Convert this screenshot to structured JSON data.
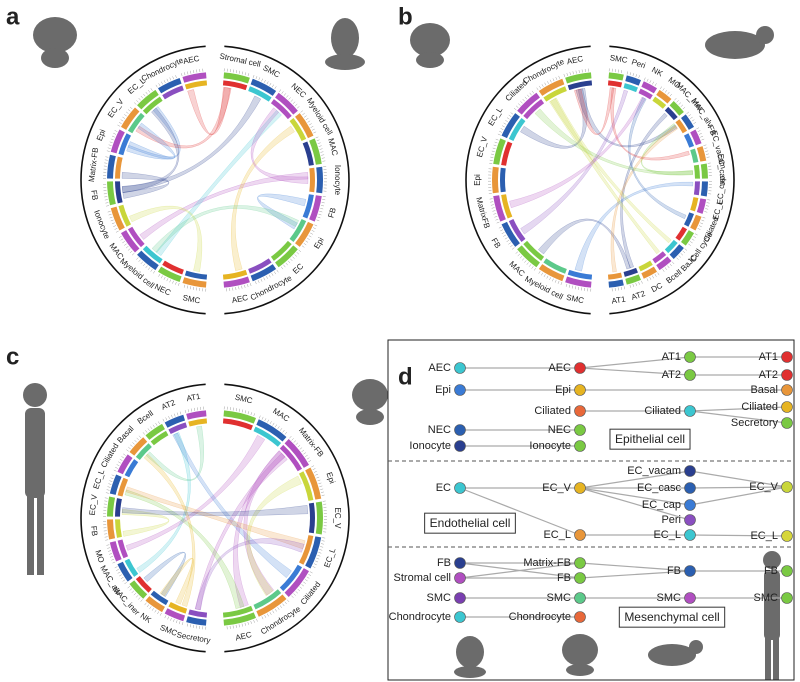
{
  "panels": {
    "a": {
      "label": "a",
      "right": [
        "Stromal cell",
        "SMC",
        "NEC",
        "Myeloid cell",
        "MAC",
        "Ionocyte",
        "FB",
        "Epi",
        "EC",
        "Chondrocyte",
        "AEC"
      ],
      "left": [
        "SMC",
        "NEC",
        "Myeloid cell",
        "MAC",
        "Ionocyte",
        "FB",
        "Matrix-FB",
        "Epi",
        "EC_V",
        "EC_L",
        "Chondrocyte",
        "AEC"
      ]
    },
    "b": {
      "label": "b",
      "right": [
        "SMC",
        "Peri",
        "NK",
        "MO",
        "MAC_iner",
        "MAC_alv",
        "FB",
        "EC_vacam",
        "EC_casc",
        "EC_cap",
        "EC_L",
        "Ciliated",
        "Cell cycle",
        "BaJC",
        "Bcell",
        "DC",
        "AT2",
        "AT1"
      ],
      "left": [
        "SMC",
        "Myeloid cell",
        "MAC",
        "FB",
        "MatrixFB",
        "Epi",
        "EC_V",
        "EC_L",
        "Ciliated",
        "Chondrocyte",
        "AEC"
      ]
    },
    "c": {
      "label": "c",
      "right": [
        "SMC",
        "MAC",
        "Matrix-FB",
        "Epi",
        "EC_V",
        "EC_L",
        "Ciliated",
        "Chondrocyte",
        "AEC"
      ],
      "left": [
        "Secretory",
        "SMC",
        "NK",
        "MAC_iner",
        "MAC_alv",
        "MO",
        "FB",
        "EC_V",
        "EC_L",
        "Ciliated",
        "Basal",
        "Bcell",
        "AT2",
        "AT1"
      ]
    },
    "d": {
      "label": "d",
      "groups": [
        {
          "name": "Epithelial cell",
          "columns": [
            [
              {
                "label": "AEC",
                "color": "#3cc6d0"
              },
              {
                "label": "Epi",
                "color": "#3a7bd5"
              },
              {
                "label": "NEC",
                "color": "#2b5fb0"
              },
              {
                "label": "Ionocyte",
                "color": "#2a3f8f"
              }
            ],
            [
              {
                "label": "AEC",
                "color": "#e03030"
              },
              {
                "label": "Epi",
                "color": "#e6b422"
              },
              {
                "label": "Ciliated",
                "color": "#e8683a"
              },
              {
                "label": "NEC",
                "color": "#7ac943"
              },
              {
                "label": "Ionocyte",
                "color": "#7ac943"
              }
            ],
            [
              {
                "label": "AT1",
                "color": "#7ac943"
              },
              {
                "label": "AT2",
                "color": "#7ac943"
              },
              {
                "label": "Ciliated",
                "color": "#3cc6d0"
              }
            ],
            [
              {
                "label": "AT1",
                "color": "#e03030"
              },
              {
                "label": "AT2",
                "color": "#e03030"
              },
              {
                "label": "Basal",
                "color": "#e8963a"
              },
              {
                "label": "Ciliated",
                "color": "#e6b422"
              },
              {
                "label": "Secretory",
                "color": "#7ac943"
              }
            ]
          ]
        },
        {
          "name": "Endothelial cell",
          "columns": [
            [
              {
                "label": "EC",
                "color": "#3cc6d0"
              }
            ],
            [
              {
                "label": "EC_V",
                "color": "#e6b422"
              },
              {
                "label": "EC_L",
                "color": "#e8963a"
              }
            ],
            [
              {
                "label": "EC_vacam",
                "color": "#2a3f8f"
              },
              {
                "label": "EC_casc",
                "color": "#2b5fb0"
              },
              {
                "label": "EC_cap",
                "color": "#3a7bd5"
              },
              {
                "label": "Peri",
                "color": "#8a4fc0"
              },
              {
                "label": "EC_L",
                "color": "#3cc6d0"
              }
            ],
            [
              {
                "label": "EC_V",
                "color": "#c9d63a"
              },
              {
                "label": "EC_L",
                "color": "#d6d63a"
              }
            ]
          ]
        },
        {
          "name": "Mesenchymal cell",
          "columns": [
            [
              {
                "label": "FB",
                "color": "#2a3f8f"
              },
              {
                "label": "Stromal cell",
                "color": "#b04fc0"
              },
              {
                "label": "SMC",
                "color": "#7a3fb0"
              },
              {
                "label": "Chondrocyte",
                "color": "#3cc6d0"
              }
            ],
            [
              {
                "label": "Matrix-FB",
                "color": "#7ac943"
              },
              {
                "label": "FB",
                "color": "#7ac943"
              },
              {
                "label": "SMC",
                "color": "#5cc98a"
              },
              {
                "label": "Chondrocyte",
                "color": "#e8683a"
              }
            ],
            [
              {
                "label": "FB",
                "color": "#2b5fb0"
              },
              {
                "label": "SMC",
                "color": "#b04fc0"
              }
            ],
            [
              {
                "label": "FB",
                "color": "#7ac943"
              },
              {
                "label": "SMC",
                "color": "#7ac943"
              }
            ]
          ]
        }
      ]
    }
  }
}
